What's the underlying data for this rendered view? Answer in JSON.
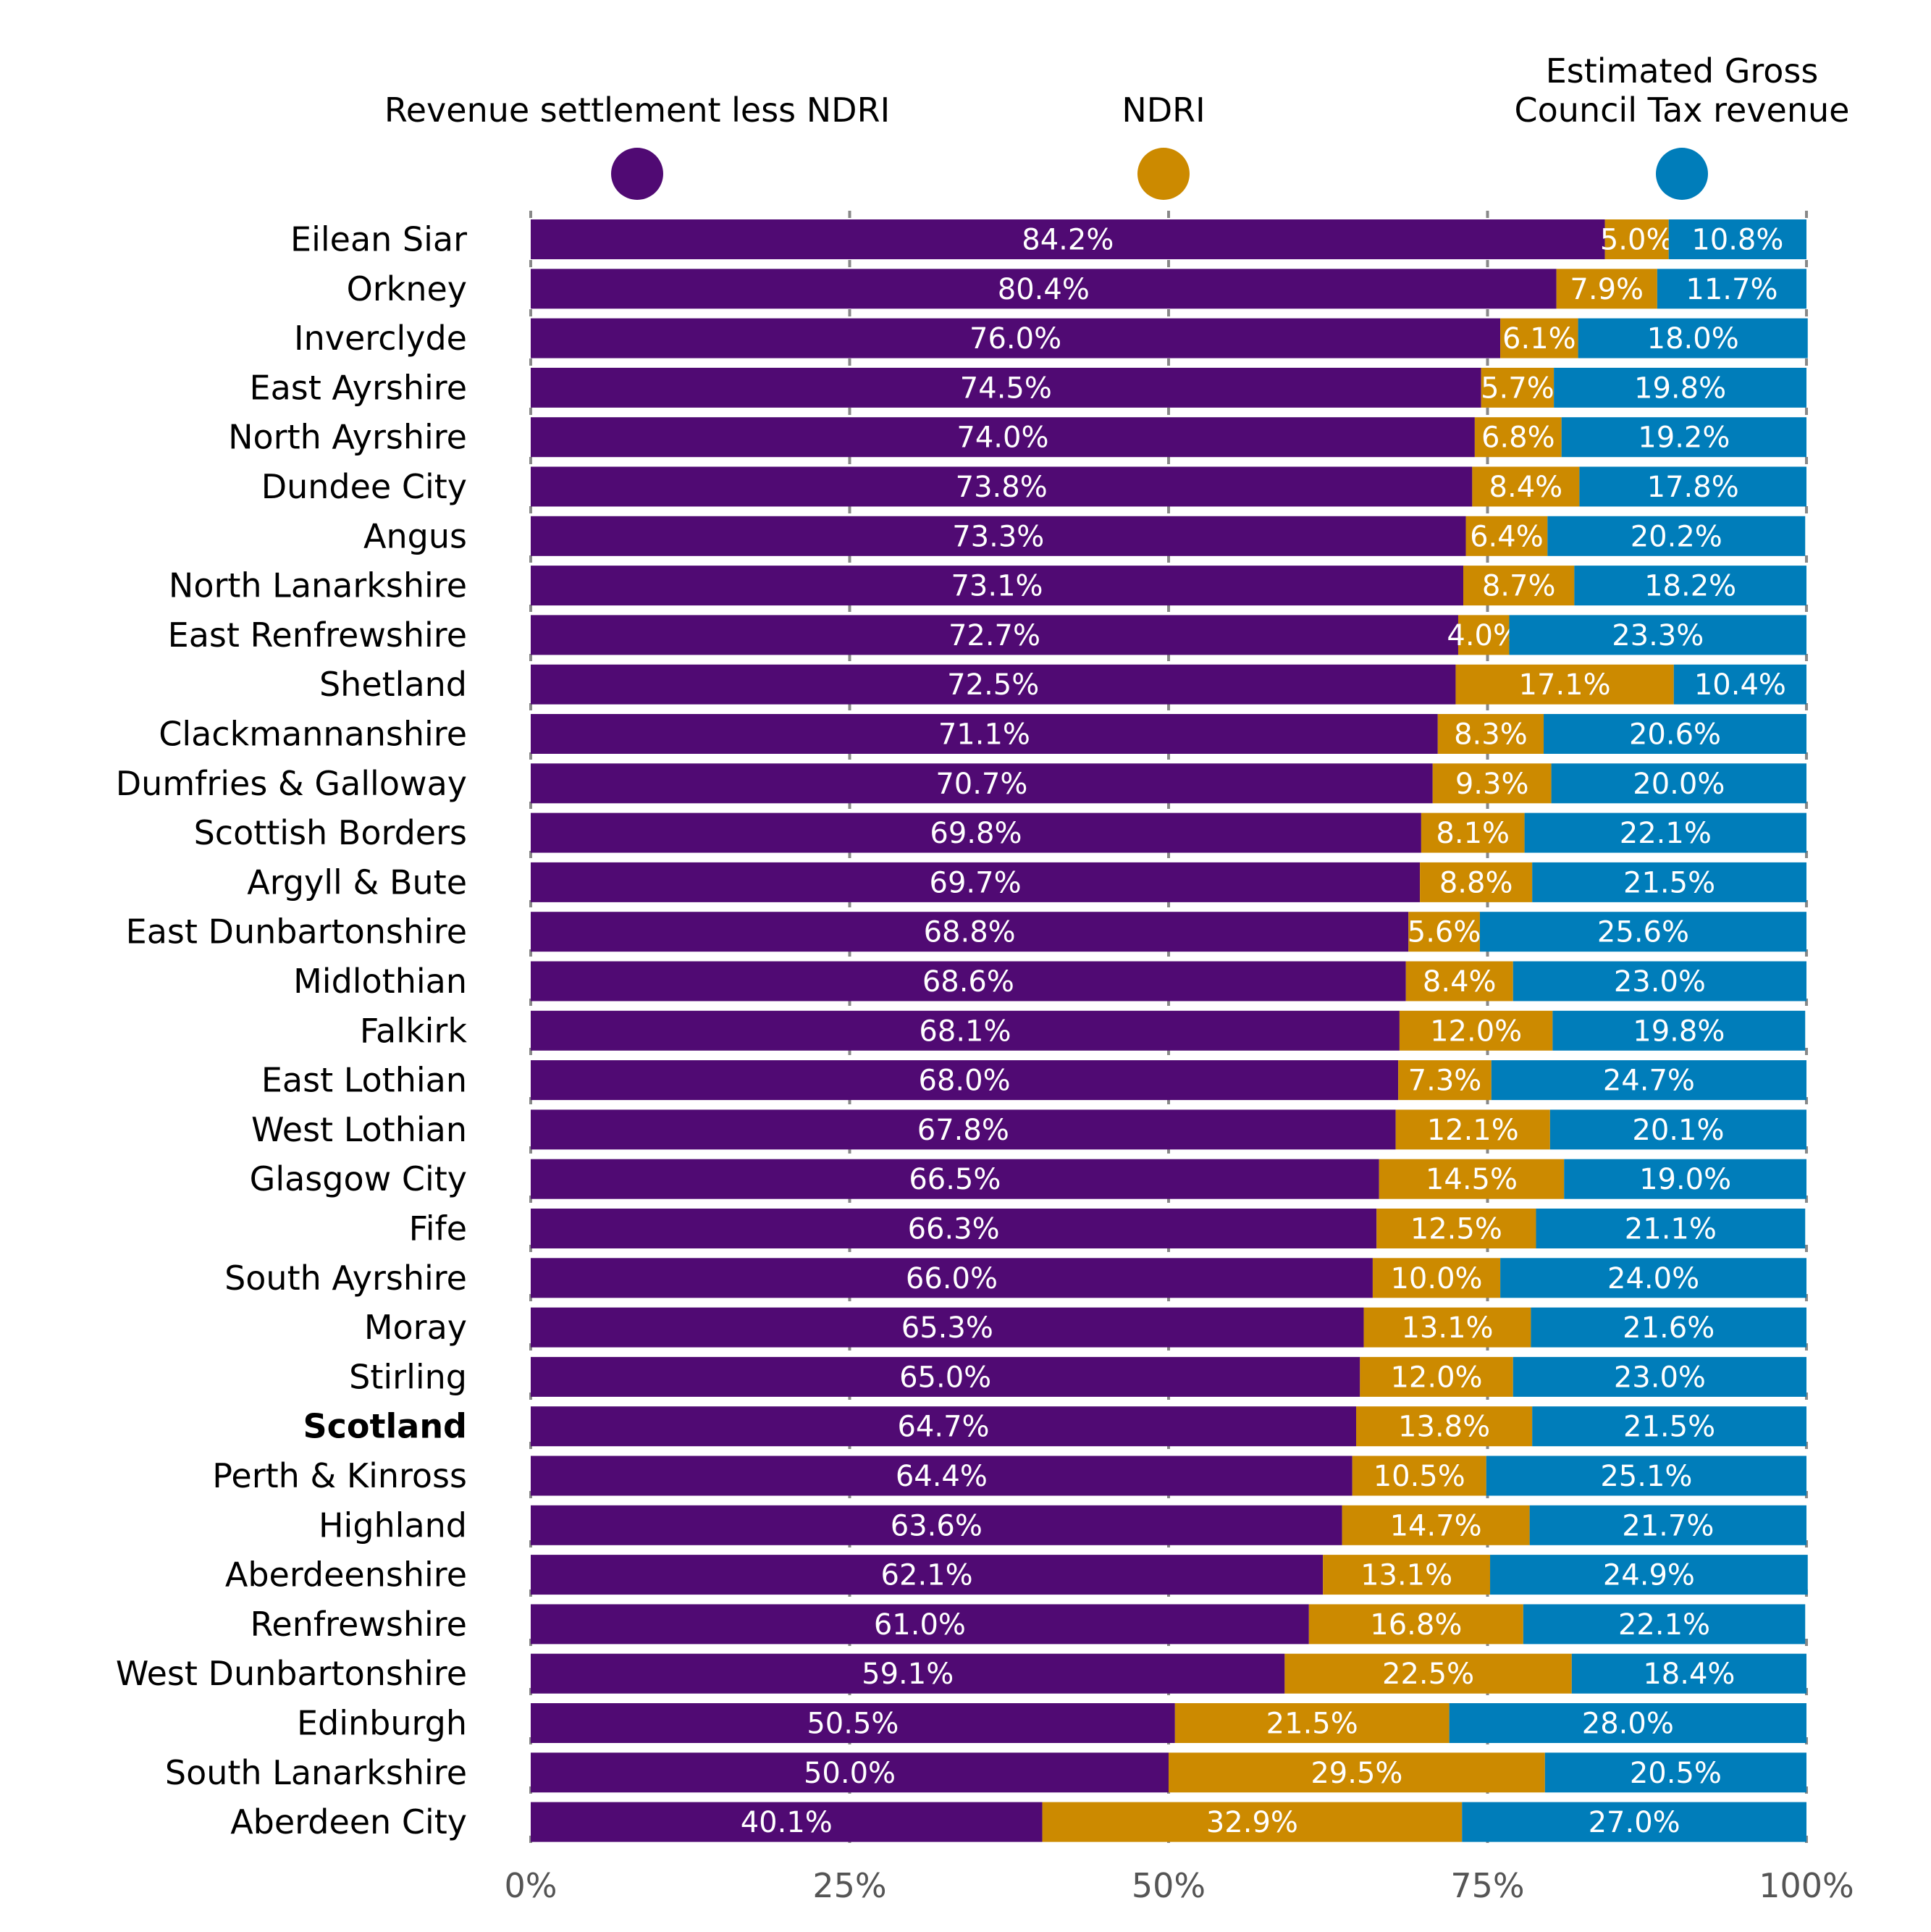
{
  "chart_data": {
    "type": "bar",
    "orientation": "horizontal",
    "stacked": true,
    "normalized": true,
    "title": "",
    "xlabel": "",
    "ylabel": "",
    "xlim": [
      0,
      100
    ],
    "x_ticks": [
      "0%",
      "25%",
      "50%",
      "75%",
      "100%"
    ],
    "x_tick_values": [
      0,
      25,
      50,
      75,
      100
    ],
    "grid": "vertical dashed",
    "legend_position": "top",
    "categories": [
      "Eilean Siar",
      "Orkney",
      "Inverclyde",
      "East Ayrshire",
      "North Ayrshire",
      "Dundee City",
      "Angus",
      "North Lanarkshire",
      "East Renfrewshire",
      "Shetland",
      "Clackmannanshire",
      "Dumfries & Galloway",
      "Scottish Borders",
      "Argyll & Bute",
      "East Dunbartonshire",
      "Midlothian",
      "Falkirk",
      "East Lothian",
      "West Lothian",
      "Glasgow City",
      "Fife",
      "South Ayrshire",
      "Moray",
      "Stirling",
      "Scotland",
      "Perth & Kinross",
      "Highland",
      "Aberdeenshire",
      "Renfrewshire",
      "West Dunbartonshire",
      "Edinburgh",
      "South Lanarkshire",
      "Aberdeen City"
    ],
    "highlight_category": "Scotland",
    "series": [
      {
        "name": "Revenue settlement less NDRI",
        "color": "#500A73",
        "values": [
          84.2,
          80.4,
          76.0,
          74.5,
          74.0,
          73.8,
          73.3,
          73.1,
          72.7,
          72.5,
          71.1,
          70.7,
          69.8,
          69.7,
          68.8,
          68.6,
          68.1,
          68.0,
          67.8,
          66.5,
          66.3,
          66.0,
          65.3,
          65.0,
          64.7,
          64.4,
          63.6,
          62.1,
          61.0,
          59.1,
          50.5,
          50.0,
          40.1
        ]
      },
      {
        "name": "NDRI",
        "color": "#CC8A00",
        "values": [
          5.0,
          7.9,
          6.1,
          5.7,
          6.8,
          8.4,
          6.4,
          8.7,
          4.0,
          17.1,
          8.3,
          9.3,
          8.1,
          8.8,
          5.6,
          8.4,
          12.0,
          7.3,
          12.1,
          14.5,
          12.5,
          10.0,
          13.1,
          12.0,
          13.8,
          10.5,
          14.7,
          13.1,
          16.8,
          22.5,
          21.5,
          29.5,
          32.9
        ]
      },
      {
        "name": "Estimated Gross Council Tax revenue",
        "legend_lines": [
          "Estimated Gross",
          "Council Tax revenue"
        ],
        "color": "#007DBA",
        "values": [
          10.8,
          11.7,
          18.0,
          19.8,
          19.2,
          17.8,
          20.2,
          18.2,
          23.3,
          10.4,
          20.6,
          20.0,
          22.1,
          21.5,
          25.6,
          23.0,
          19.8,
          24.7,
          20.1,
          19.0,
          21.1,
          24.0,
          21.6,
          23.0,
          21.5,
          25.1,
          21.7,
          24.9,
          22.1,
          18.4,
          28.0,
          20.5,
          27.0
        ]
      }
    ],
    "value_label_format": "{v}%"
  }
}
